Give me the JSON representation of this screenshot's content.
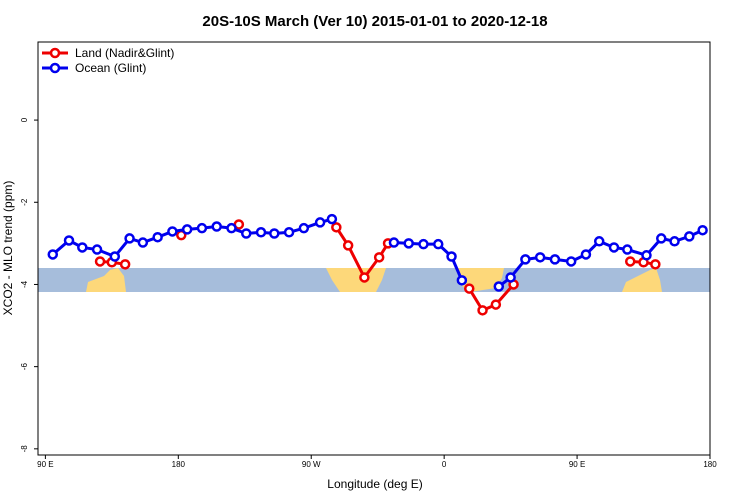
{
  "chart_data": {
    "type": "line",
    "title": "20S-10S March (Ver 10)   2015-01-01 to 2020-12-18",
    "x_label": "Longitude (deg E)",
    "y_label": "XCO2 - MLO trend (ppm)",
    "xlim": [
      85,
      540
    ],
    "ylim": [
      -8.15,
      1.9
    ],
    "xticks": [
      {
        "value": 90,
        "label": "90 E"
      },
      {
        "value": 180,
        "label": "180"
      },
      {
        "value": 270,
        "label": "90 W"
      },
      {
        "value": 360,
        "label": "0"
      },
      {
        "value": 450,
        "label": "90 E"
      },
      {
        "value": 540,
        "label": "180"
      }
    ],
    "yticks": [
      -8,
      -6,
      -4,
      -2,
      0
    ],
    "legend": "top-left",
    "series": [
      {
        "name": "Land (Nadir&Glint)",
        "color": "#ee0000",
        "x": [
          127,
          135,
          144,
          null,
          182,
          null,
          221,
          null,
          287,
          295,
          306,
          316,
          322,
          null,
          377,
          386,
          395,
          407,
          null,
          486,
          495,
          503
        ],
        "values": [
          -3.44,
          -3.46,
          -3.51,
          null,
          -2.8,
          null,
          -2.54,
          null,
          -2.61,
          -3.05,
          -3.83,
          -3.34,
          -3.0,
          null,
          -4.1,
          -4.63,
          -4.49,
          -4.0,
          null,
          -3.44,
          -3.46,
          -3.51
        ]
      },
      {
        "name": "Ocean (Glint)",
        "color": "#0000ee",
        "x": [
          95,
          106,
          115,
          125,
          137,
          147,
          156,
          166,
          176,
          186,
          196,
          206,
          216,
          226,
          236,
          245,
          255,
          265,
          276,
          284,
          null,
          326,
          336,
          346,
          356,
          365,
          372,
          null,
          397,
          405,
          415,
          425,
          435,
          446,
          456,
          465,
          475,
          484,
          497,
          507,
          516,
          526,
          535
        ],
        "values": [
          -3.27,
          -2.93,
          -3.1,
          -3.15,
          -3.32,
          -2.88,
          -2.98,
          -2.85,
          -2.71,
          -2.66,
          -2.63,
          -2.59,
          -2.63,
          -2.76,
          -2.73,
          -2.76,
          -2.73,
          -2.63,
          -2.49,
          -2.41,
          null,
          -2.98,
          -3.0,
          -3.02,
          -3.02,
          -3.32,
          -3.9,
          null,
          -4.05,
          -3.83,
          -3.39,
          -3.34,
          -3.39,
          -3.44,
          -3.27,
          -2.95,
          -3.1,
          -3.15,
          -3.29,
          -2.88,
          -2.95,
          -2.83,
          -2.68
        ]
      }
    ]
  }
}
